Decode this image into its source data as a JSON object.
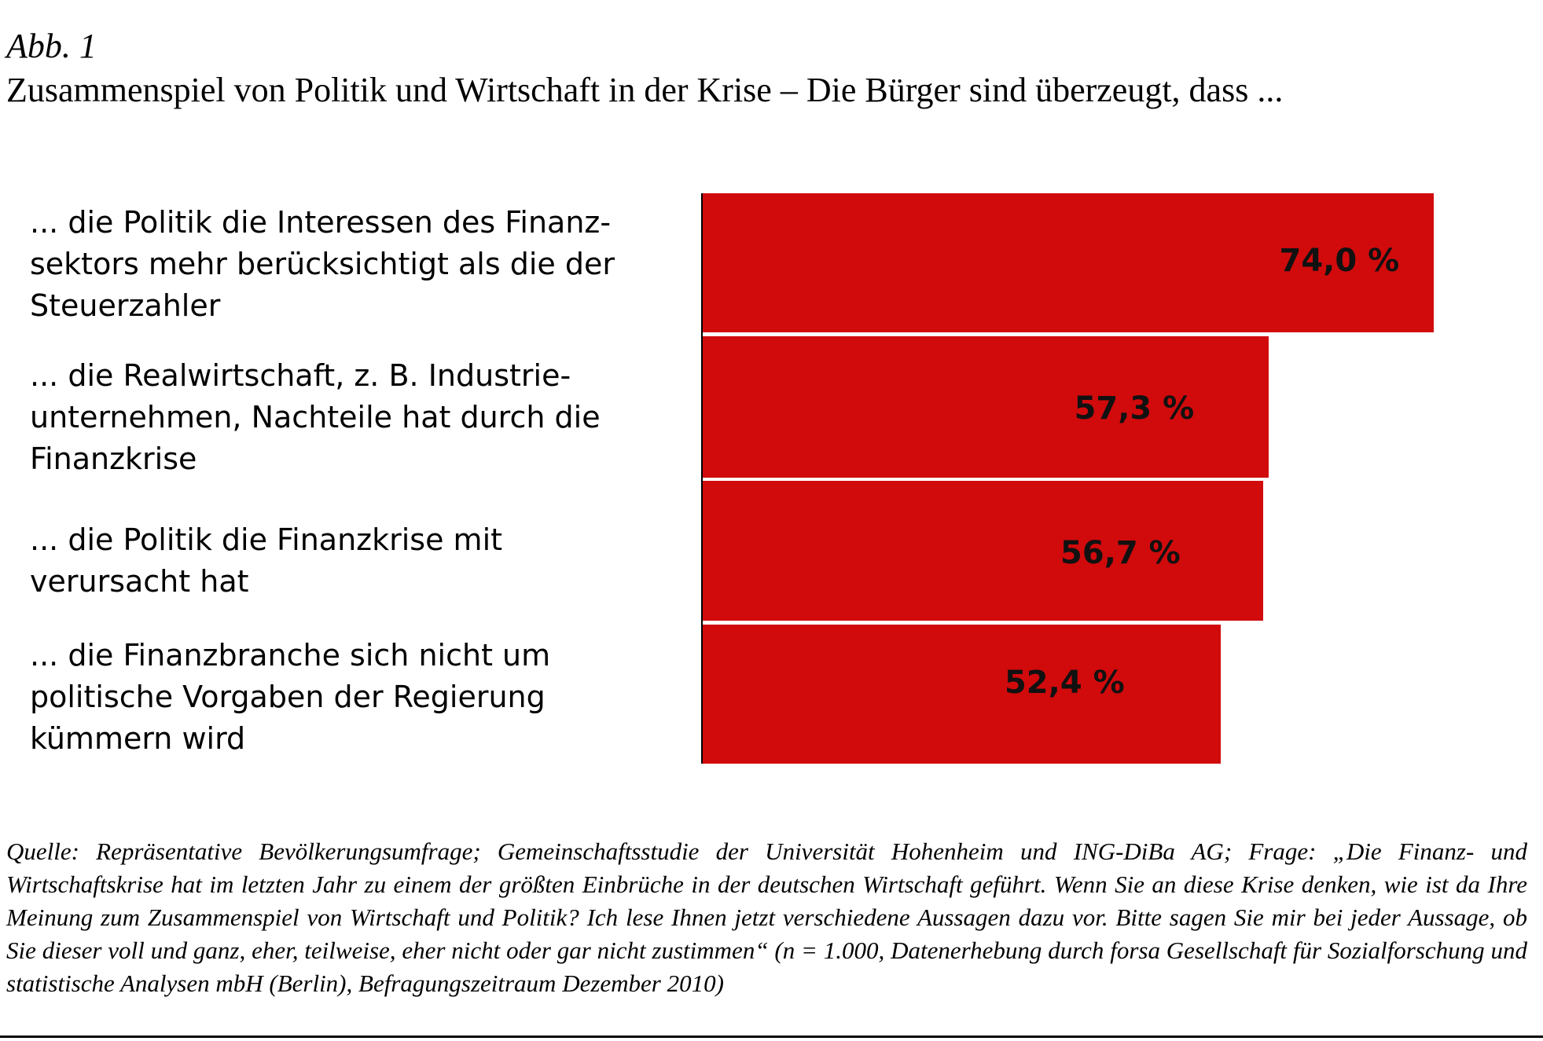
{
  "figure": {
    "label": "Abb. 1",
    "title": "Zusammenspiel von Politik und Wirtschaft in der Krise – Die Bürger sind überzeugt, dass ..."
  },
  "chart_data": {
    "type": "bar",
    "orientation": "horizontal",
    "categories": [
      "... die Politik die Interessen des Finanz-\nsektors mehr berücksichtigt als die der\nSteuerzahler",
      "... die Realwirtschaft, z. B. Industrie-\nunternehmen, Nachteile hat durch die\nFinanzkrise",
      "... die Politik die Finanzkrise mit\nverursacht hat",
      "... die Finanzbranche sich nicht um\npolitische Vorgaben der Regierung\nkümmern wird"
    ],
    "values": [
      74.0,
      57.3,
      56.7,
      52.4
    ],
    "value_labels": [
      "74,0 %",
      "57,3 %",
      "56,7 %",
      "52,4 %"
    ],
    "unit": "%",
    "bar_color": "#d10a0c",
    "title": "Zusammenspiel von Politik und Wirtschaft in der Krise – Die Bürger sind überzeugt, dass ...",
    "grid": false,
    "legend": "none"
  },
  "source_note": "Quelle: Repräsentative Bevölkerungsumfrage; Gemeinschaftsstudie der Universität Hohenheim und ING-DiBa AG; Frage: „Die Finanz- und Wirtschaftskrise hat im letzten Jahr zu einem der größten Einbrüche in der deutschen Wirtschaft geführt. Wenn Sie an diese Krise denken, wie ist da Ihre Meinung zum Zusammenspiel von Wirtschaft und Politik? Ich lese Ihnen jetzt verschiedene Aussagen dazu vor. Bitte sagen Sie mir bei jeder Aussage, ob Sie dieser voll und ganz, eher, teilweise, eher nicht oder gar nicht zustimmen“ (n = 1.000, Datenerhebung durch forsa Gesellschaft für Sozialforschung und statistische Analysen mbH (Berlin), Befragungszeitraum Dezember 2010)"
}
